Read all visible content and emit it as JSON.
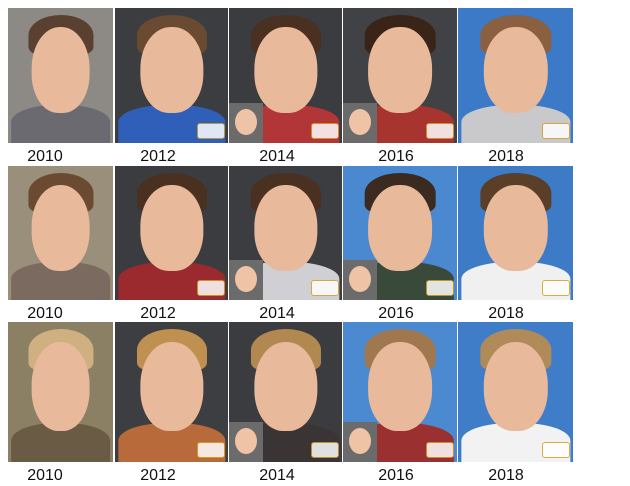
{
  "rows": [
    {
      "labels": [
        "2010",
        "2012",
        "2014",
        "2016",
        "2018"
      ]
    },
    {
      "labels": [
        "2010",
        "2012",
        "2014",
        "2016",
        "2018"
      ]
    },
    {
      "labels": [
        "2010",
        "2012",
        "2014",
        "2016",
        "2018"
      ]
    }
  ]
}
